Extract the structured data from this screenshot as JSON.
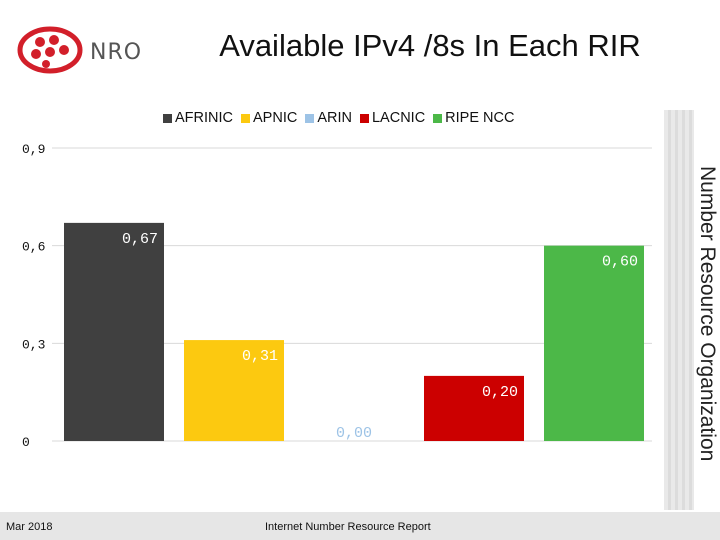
{
  "header": {
    "logo_text": "NRO",
    "title": "Available IPv4 /8s In Each RIR"
  },
  "side_label": "Number Resource Organization",
  "footer": {
    "date": "Mar 2018",
    "report": "Internet Number Resource Report"
  },
  "chart_data": {
    "type": "bar",
    "title": "Available IPv4 /8s In Each RIR",
    "categories": [
      "AFRINIC",
      "APNIC",
      "ARIN",
      "LACNIC",
      "RIPE NCC"
    ],
    "values": [
      0.67,
      0.31,
      0.0,
      0.2,
      0.6
    ],
    "value_labels": [
      "0,67",
      "0,31",
      "0,00",
      "0,20",
      "0,60"
    ],
    "colors": [
      "#404040",
      "#fcc910",
      "#9dc3e6",
      "#cc0000",
      "#4cb848"
    ],
    "ylim": [
      0,
      0.9
    ],
    "yticks": [
      0,
      0.3,
      0.6,
      0.9
    ],
    "ytick_labels": [
      "0",
      "0,3",
      "0,6",
      "0,9"
    ],
    "grid": true,
    "legend": "top"
  }
}
